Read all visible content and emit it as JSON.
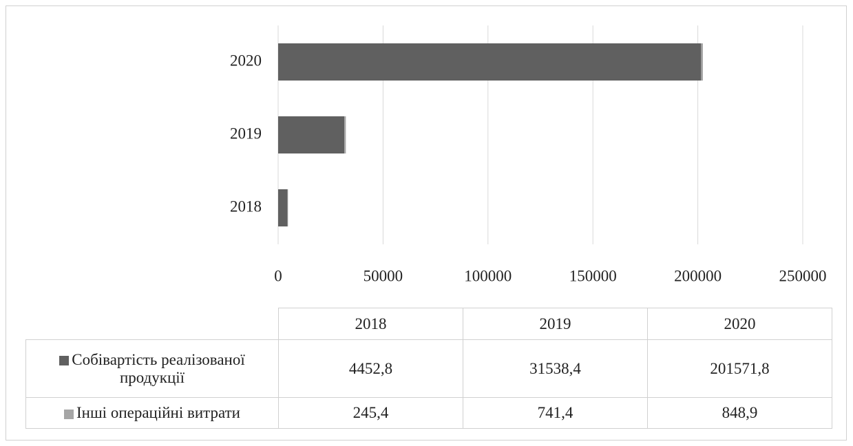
{
  "chart_data": {
    "type": "stacked-barh",
    "categories": [
      "2018",
      "2019",
      "2020"
    ],
    "series": [
      {
        "name": "Собівартість реалізованої продукції",
        "color": "#606060",
        "values": [
          4452.8,
          31538.4,
          201571.8
        ],
        "value_labels": [
          "4452,8",
          "31538,4",
          "201571,8"
        ]
      },
      {
        "name": "Інші операційні витрати",
        "color": "#a6a6a6",
        "values": [
          245.4,
          741.4,
          848.9
        ],
        "value_labels": [
          "245,4",
          "741,4",
          "848,9"
        ]
      }
    ],
    "xlim": [
      0,
      250000
    ],
    "xticks": [
      0,
      50000,
      100000,
      150000,
      200000,
      250000
    ],
    "grid": true
  }
}
